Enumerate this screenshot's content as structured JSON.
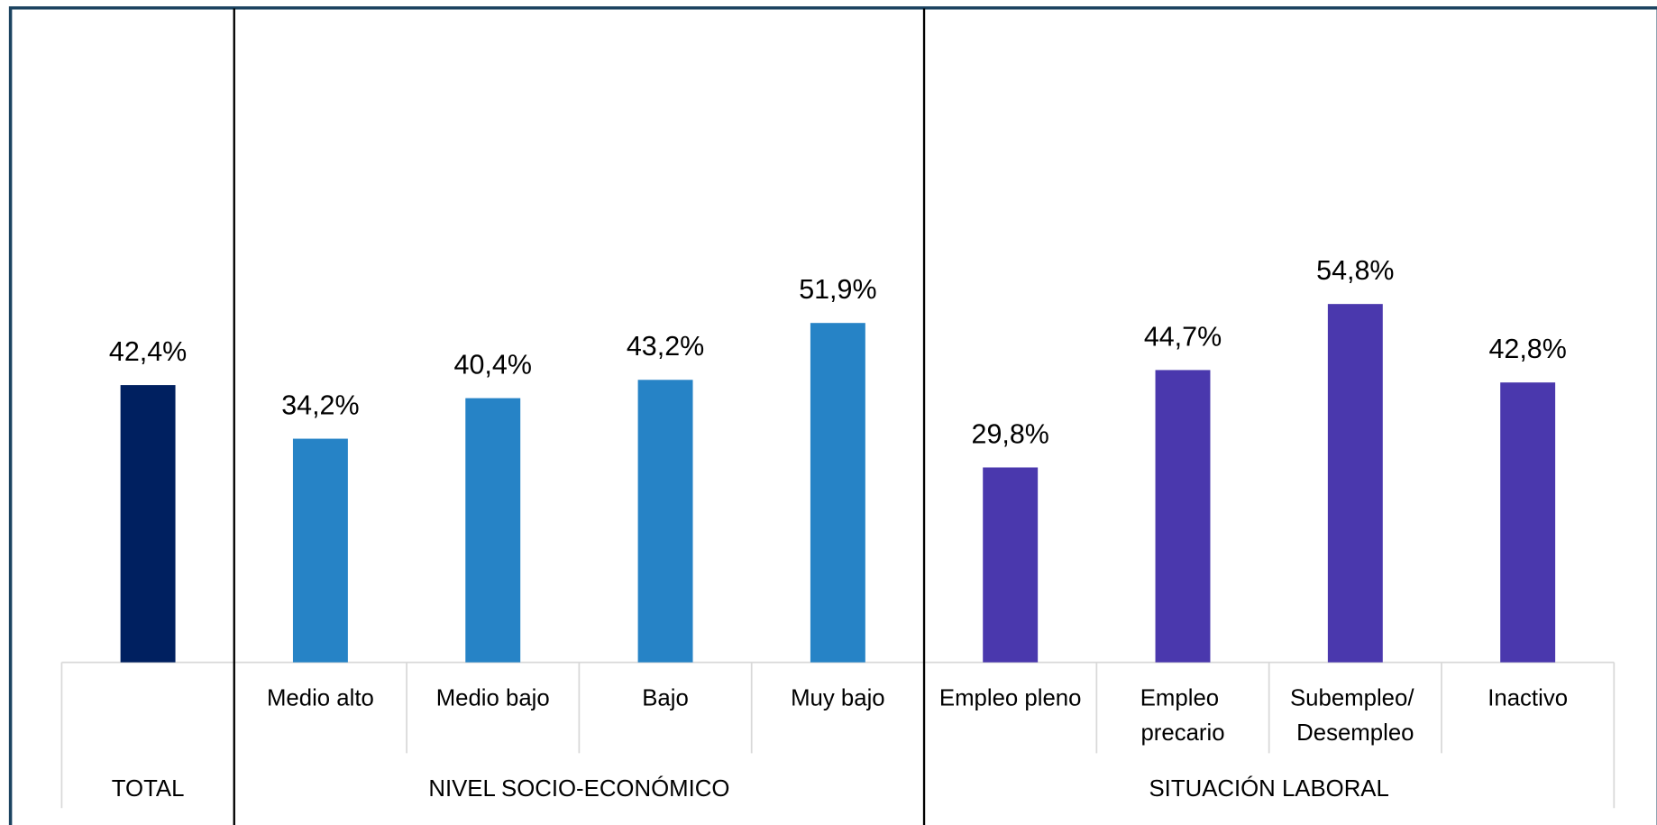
{
  "chart_data": {
    "type": "bar",
    "categories": [
      null,
      "Medio alto",
      "Medio bajo",
      "Bajo",
      "Muy bajo",
      "Empleo pleno",
      "Empleo precario",
      "Subempleo/ Desempleo",
      "Inactivo"
    ],
    "values": [
      42.4,
      34.2,
      40.4,
      43.2,
      51.9,
      29.8,
      44.7,
      54.8,
      42.8
    ],
    "value_labels": [
      "42,4%",
      "34,2%",
      "40,4%",
      "43,2%",
      "51,9%",
      "29,8%",
      "44,7%",
      "54,8%",
      "42,8%"
    ],
    "groups": [
      {
        "label": "TOTAL",
        "size": 1,
        "color": "#002060"
      },
      {
        "label": "NIVEL SOCIO-ECONÓMICO",
        "size": 4,
        "color": "#2683c6"
      },
      {
        "label": "SITUACIÓN LABORAL",
        "size": 4,
        "color": "#4a38ad"
      }
    ],
    "ylim": [
      0,
      100
    ],
    "grid": false
  }
}
